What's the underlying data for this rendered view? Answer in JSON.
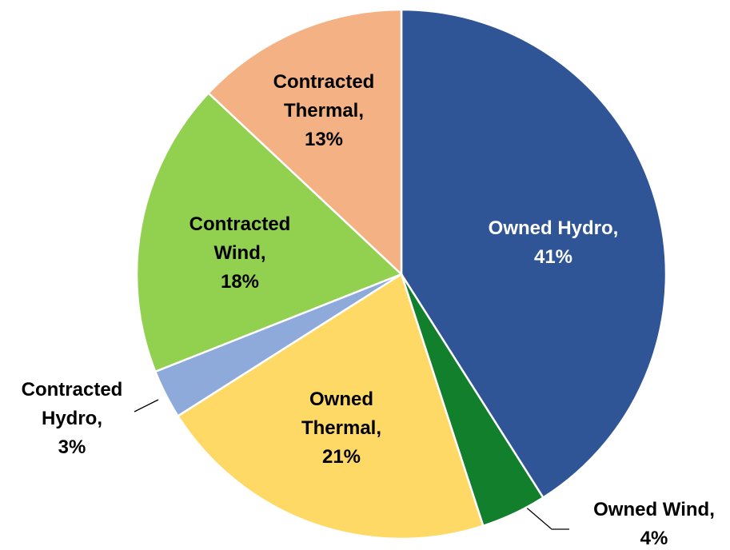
{
  "chart_data": {
    "type": "pie",
    "values": [
      41,
      4,
      21,
      3,
      18,
      13
    ],
    "value_labels": [
      "Owned Hydro, 41%",
      "Owned Wind, 4%",
      "Owned Thermal, 21%",
      "Contracted Hydro, 3%",
      "Contracted Wind, 18%",
      "Contracted Thermal, 13%"
    ],
    "colors": [
      "#2f5597",
      "#127f2c",
      "#ffd966",
      "#8eaadb",
      "#92d050",
      "#f4b183"
    ]
  }
}
